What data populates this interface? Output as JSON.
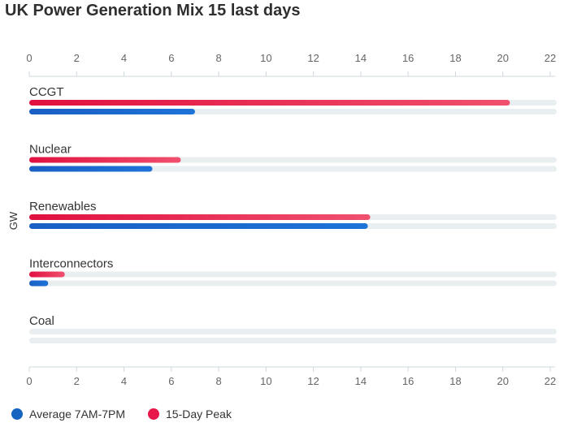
{
  "chart_data": {
    "type": "bar",
    "orientation": "horizontal",
    "title": "UK Power Generation Mix 15 last days",
    "ylabel": "GW",
    "xlim": [
      0,
      22
    ],
    "xticks": [
      "0",
      "2",
      "4",
      "6",
      "8",
      "10",
      "12",
      "14",
      "16",
      "18",
      "20",
      "22"
    ],
    "categories": [
      "CCGT",
      "Nuclear",
      "Renewables",
      "Interconnectors",
      "Coal"
    ],
    "series": [
      {
        "name": "15-Day Peak",
        "color": "#e8194a",
        "values": [
          20.3,
          6.4,
          14.4,
          1.5,
          0
        ]
      },
      {
        "name": "Average 7AM-7PM",
        "color": "#1565c0",
        "values": [
          7.0,
          5.2,
          14.3,
          0.8,
          0
        ]
      }
    ],
    "axis_ticks_top_and_bottom": true,
    "legend_position": "bottom-left"
  }
}
